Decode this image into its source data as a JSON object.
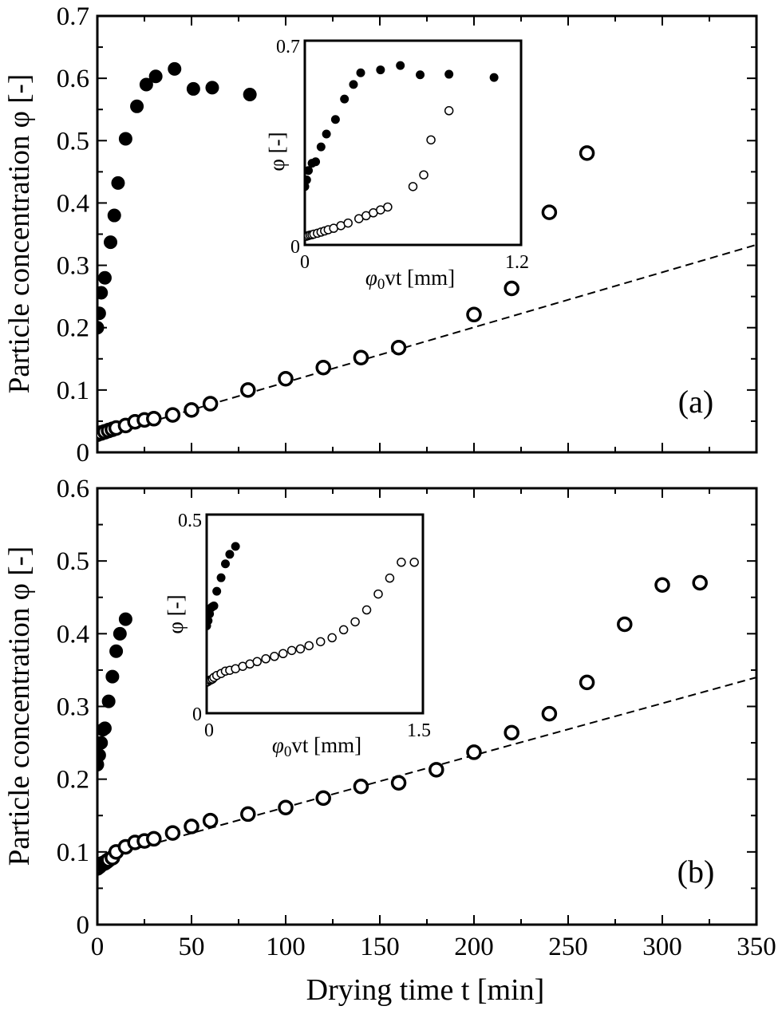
{
  "chart_data": [
    {
      "panel": "(a)",
      "type": "scatter",
      "ylabel": "Particle concentration φ [-]",
      "xlim": [
        0,
        350
      ],
      "ylim": [
        0,
        0.7
      ],
      "xticks": [
        "0",
        "50",
        "100",
        "150",
        "200",
        "250",
        "300",
        "350"
      ],
      "yticks": [
        "0",
        "0.1",
        "0.2",
        "0.3",
        "0.4",
        "0.5",
        "0.6",
        "0.7"
      ],
      "series": [
        {
          "marker": "filled-circle",
          "x": [
            0,
            1,
            2,
            4,
            7,
            9,
            11,
            15,
            21,
            26,
            31,
            41,
            51,
            61,
            81
          ],
          "y": [
            0.2,
            0.223,
            0.256,
            0.28,
            0.337,
            0.38,
            0.432,
            0.503,
            0.555,
            0.59,
            0.603,
            0.615,
            0.583,
            0.585,
            0.574
          ]
        },
        {
          "marker": "open-circle",
          "x": [
            0,
            2,
            4,
            6,
            8,
            10,
            15,
            20,
            25,
            30,
            40,
            50,
            60,
            80,
            100,
            120,
            140,
            160,
            200,
            220,
            240,
            260
          ],
          "y": [
            0.029,
            0.031,
            0.033,
            0.035,
            0.037,
            0.039,
            0.043,
            0.049,
            0.052,
            0.054,
            0.06,
            0.068,
            0.078,
            0.1,
            0.118,
            0.136,
            0.152,
            0.168,
            0.221,
            0.263,
            0.385,
            0.48
          ]
        }
      ],
      "fit_line": {
        "style": "dashed",
        "x": [
          0,
          350
        ],
        "y": [
          0.024,
          0.333
        ]
      },
      "inset": {
        "xlabel_prefix": "φ",
        "xlabel_sub": "0",
        "xlabel_suffix": "vt [mm]",
        "ylabel": "φ [-]",
        "xlim": [
          0,
          1.2
        ],
        "ylim": [
          0,
          0.7
        ],
        "xticks": [
          "0",
          "1.2"
        ],
        "yticks": [
          "0",
          "0.7"
        ],
        "series": [
          {
            "marker": "filled-circle",
            "x": [
              0,
              0.01,
              0.02,
              0.04,
              0.06,
              0.09,
              0.12,
              0.17,
              0.22,
              0.27,
              0.31,
              0.42,
              0.53,
              0.64,
              0.8,
              1.05
            ],
            "y": [
              0.2,
              0.223,
              0.255,
              0.28,
              0.285,
              0.336,
              0.38,
              0.43,
              0.5,
              0.55,
              0.59,
              0.6,
              0.615,
              0.583,
              0.585,
              0.574
            ]
          },
          {
            "marker": "open-circle",
            "x": [
              0,
              0.01,
              0.02,
              0.03,
              0.04,
              0.05,
              0.07,
              0.09,
              0.11,
              0.13,
              0.16,
              0.2,
              0.24,
              0.3,
              0.34,
              0.38,
              0.42,
              0.46,
              0.6,
              0.66,
              0.7,
              0.8
            ],
            "y": [
              0.029,
              0.03,
              0.032,
              0.034,
              0.035,
              0.037,
              0.04,
              0.044,
              0.048,
              0.052,
              0.057,
              0.066,
              0.075,
              0.09,
              0.1,
              0.11,
              0.12,
              0.13,
              0.2,
              0.24,
              0.36,
              0.46
            ]
          }
        ]
      },
      "annotation": "(a)"
    },
    {
      "panel": "(b)",
      "type": "scatter",
      "ylabel": "Particle concentration φ [-]",
      "xlabel": "Drying time t [min]",
      "xlim": [
        0,
        350
      ],
      "ylim": [
        0,
        0.6
      ],
      "xticks": [
        "0",
        "50",
        "100",
        "150",
        "200",
        "250",
        "300",
        "350"
      ],
      "yticks": [
        "0",
        "0.1",
        "0.2",
        "0.3",
        "0.4",
        "0.5",
        "0.6"
      ],
      "series": [
        {
          "marker": "filled-circle",
          "x": [
            0,
            1,
            2,
            3,
            4,
            6,
            8,
            10,
            12,
            15
          ],
          "y": [
            0.22,
            0.233,
            0.25,
            0.268,
            0.27,
            0.307,
            0.341,
            0.376,
            0.4,
            0.42
          ]
        },
        {
          "marker": "open-circle",
          "x": [
            0,
            1,
            2,
            3,
            4,
            5,
            6,
            8,
            10,
            15,
            20,
            25,
            30,
            40,
            50,
            60,
            80,
            100,
            120,
            140,
            160,
            180,
            200,
            220,
            240,
            260,
            280,
            300,
            320
          ],
          "y": [
            0.078,
            0.08,
            0.083,
            0.084,
            0.085,
            0.087,
            0.089,
            0.092,
            0.1,
            0.107,
            0.113,
            0.115,
            0.118,
            0.126,
            0.135,
            0.143,
            0.152,
            0.161,
            0.174,
            0.19,
            0.195,
            0.213,
            0.237,
            0.264,
            0.29,
            0.333,
            0.413,
            0.467,
            0.47
          ]
        }
      ],
      "fit_line": {
        "style": "dashed",
        "x": [
          0,
          350
        ],
        "y": [
          0.09,
          0.34
        ]
      },
      "inset": {
        "xlabel_prefix": "φ",
        "xlabel_sub": "0",
        "xlabel_suffix": "vt [mm]",
        "ylabel": "φ [-]",
        "xlim": [
          0,
          1.5
        ],
        "ylim": [
          0,
          0.5
        ],
        "xticks": [
          "0",
          "1.5"
        ],
        "yticks": [
          "0",
          "0.5"
        ],
        "series": [
          {
            "marker": "filled-circle",
            "x": [
              0,
              0.01,
              0.02,
              0.03,
              0.04,
              0.05,
              0.07,
              0.1,
              0.13,
              0.16,
              0.2
            ],
            "y": [
              0.22,
              0.233,
              0.25,
              0.265,
              0.268,
              0.27,
              0.307,
              0.341,
              0.376,
              0.4,
              0.42
            ]
          },
          {
            "marker": "open-circle",
            "x": [
              0,
              0.01,
              0.02,
              0.03,
              0.04,
              0.05,
              0.07,
              0.1,
              0.13,
              0.16,
              0.2,
              0.25,
              0.3,
              0.35,
              0.41,
              0.47,
              0.53,
              0.59,
              0.65,
              0.71,
              0.79,
              0.87,
              0.95,
              1.03,
              1.11,
              1.19,
              1.27,
              1.35,
              1.44
            ],
            "y": [
              0.078,
              0.08,
              0.083,
              0.084,
              0.086,
              0.09,
              0.095,
              0.1,
              0.106,
              0.108,
              0.112,
              0.118,
              0.124,
              0.13,
              0.137,
              0.143,
              0.15,
              0.158,
              0.162,
              0.17,
              0.18,
              0.19,
              0.21,
              0.23,
              0.26,
              0.3,
              0.34,
              0.38,
              0.38
            ]
          }
        ]
      },
      "annotation": "(b)"
    }
  ]
}
